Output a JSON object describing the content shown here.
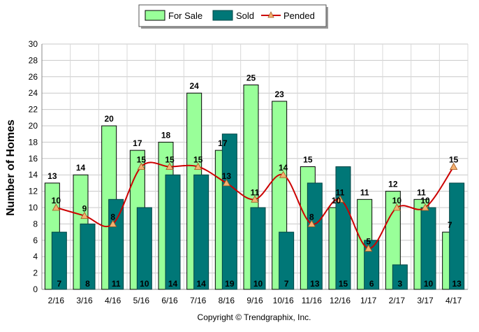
{
  "chart_data": {
    "type": "bar",
    "ylabel": "Number of Homes",
    "ylim": [
      0,
      30
    ],
    "y_ticks": [
      0,
      2,
      4,
      6,
      8,
      10,
      12,
      14,
      16,
      18,
      20,
      22,
      24,
      26,
      28,
      30
    ],
    "grid": true,
    "legend_position": "top-center",
    "categories": [
      "2/16",
      "3/16",
      "4/16",
      "5/16",
      "6/16",
      "7/16",
      "8/16",
      "9/16",
      "10/16",
      "11/16",
      "12/16",
      "1/17",
      "2/17",
      "3/17",
      "4/17"
    ],
    "series": [
      {
        "name": "For Sale",
        "type": "bar",
        "color": "#99ff99",
        "values": [
          13,
          14,
          20,
          17,
          18,
          24,
          17,
          25,
          23,
          15,
          10,
          11,
          12,
          11,
          7
        ]
      },
      {
        "name": "Sold",
        "type": "bar",
        "color": "#007777",
        "values": [
          7,
          8,
          11,
          10,
          14,
          14,
          19,
          10,
          7,
          13,
          15,
          6,
          3,
          10,
          13
        ]
      },
      {
        "name": "Pended",
        "type": "line",
        "color": "#cc0000",
        "marker_color": "#f4b070",
        "values": [
          10,
          9,
          8,
          15,
          15,
          15,
          13,
          11,
          14,
          8,
          11,
          5,
          10,
          10,
          15
        ]
      }
    ],
    "footer": "Copyright © Trendgraphix, Inc."
  }
}
